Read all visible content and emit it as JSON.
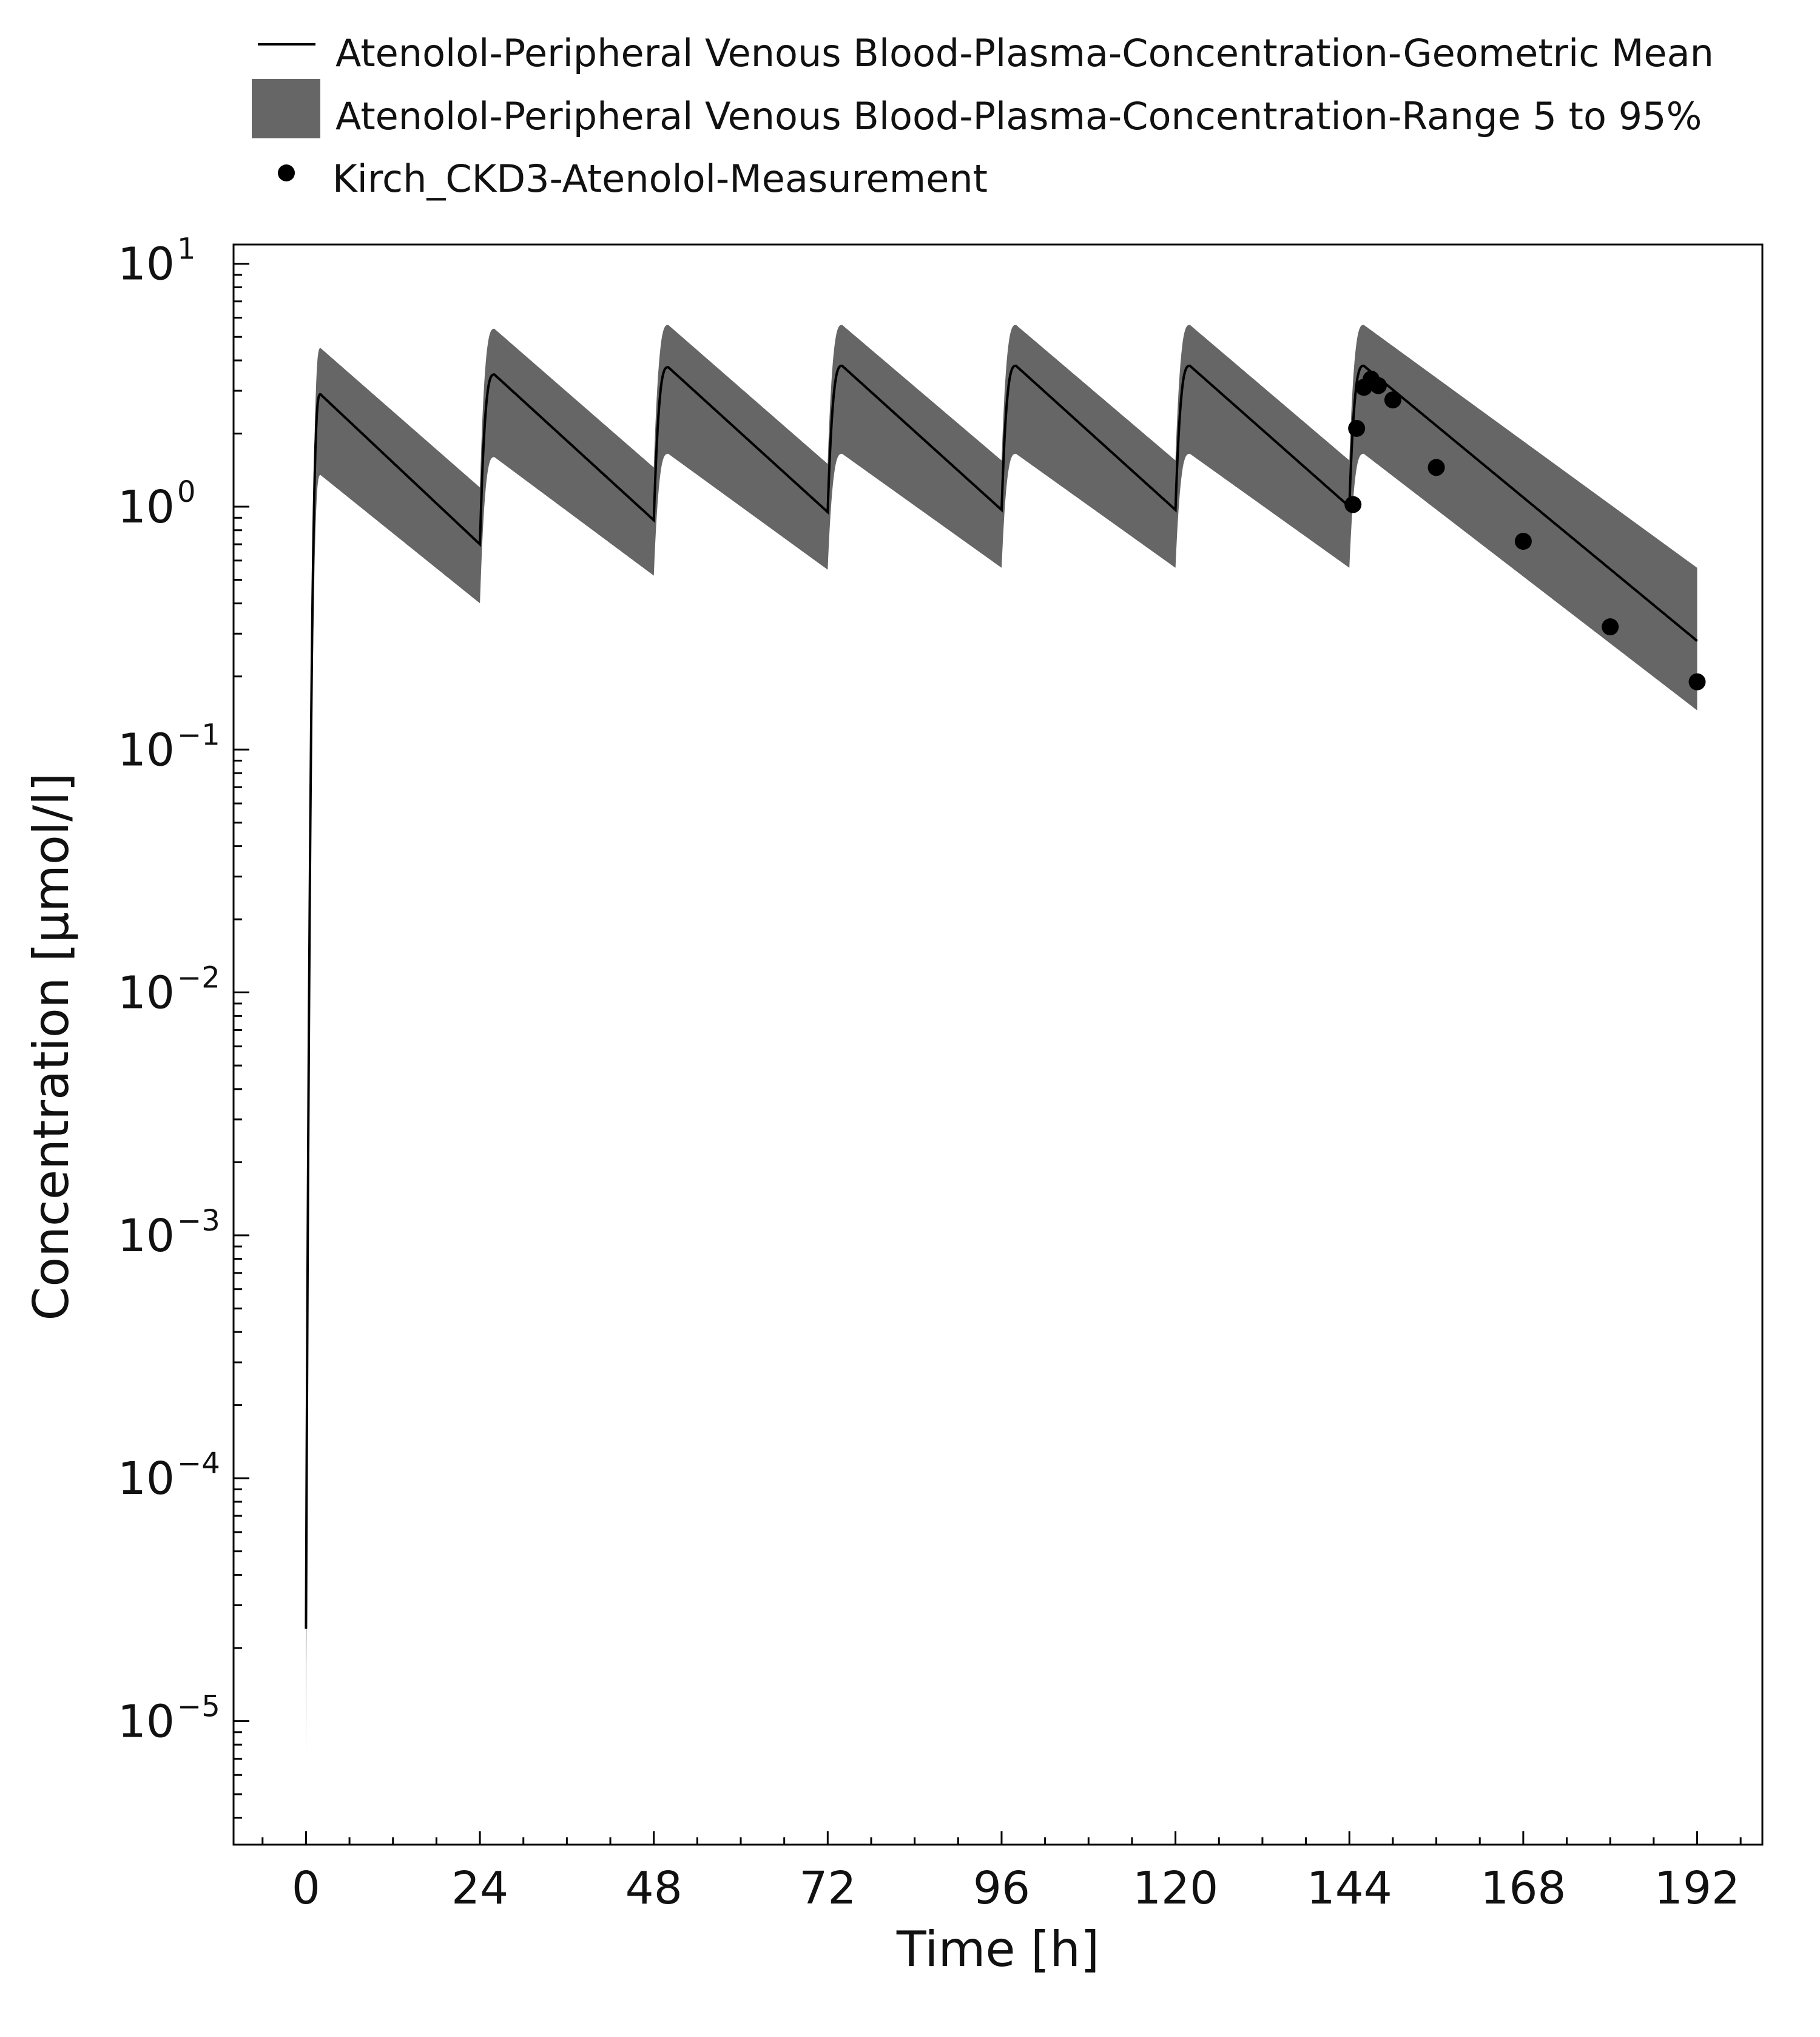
{
  "chart_data": {
    "type": "line",
    "xlabel": "Time [h]",
    "ylabel": "Concentration [µmol/l]",
    "xlim": [
      -10,
      201
    ],
    "ylim": [
      3.1e-06,
      12
    ],
    "y_scale": "log",
    "x_ticks": [
      0,
      24,
      48,
      72,
      96,
      120,
      144,
      168,
      192
    ],
    "x_tick_labels": [
      "0",
      "24",
      "48",
      "72",
      "96",
      "120",
      "144",
      "168",
      "192"
    ],
    "y_ticks": [
      {
        "value": 1e-05,
        "base": "10",
        "exp": "−5"
      },
      {
        "value": 0.0001,
        "base": "10",
        "exp": "−4"
      },
      {
        "value": 0.001,
        "base": "10",
        "exp": "−3"
      },
      {
        "value": 0.01,
        "base": "10",
        "exp": "−2"
      },
      {
        "value": 0.1,
        "base": "10",
        "exp": "−1"
      },
      {
        "value": 1,
        "base": "10",
        "exp": "0"
      },
      {
        "value": 10,
        "base": "10",
        "exp": "1"
      }
    ],
    "grid": false,
    "legend_position": "top",
    "legend": [
      {
        "kind": "line",
        "label": "Atenolol-Peripheral Venous Blood-Plasma-Concentration-Geometric Mean"
      },
      {
        "kind": "band",
        "label": "Atenolol-Peripheral Venous Blood-Plasma-Concentration-Range 5 to 95%"
      },
      {
        "kind": "point",
        "label": "Kirch_CKD3-Atenolol-Measurement"
      }
    ],
    "series": [
      {
        "name": "Atenolol-Peripheral Venous Blood-Plasma-Concentration-Geometric Mean",
        "kind": "line",
        "dosing_interval": 24,
        "doses": 7,
        "t_max": 192,
        "start_value": 2.4e-05,
        "peak_time_after_dose": 2,
        "peaks": [
          2.9,
          3.5,
          3.75,
          3.8,
          3.8,
          3.8,
          3.8
        ],
        "troughs": [
          0.7,
          0.88,
          0.95,
          0.97,
          0.97,
          1.0,
          0.28
        ],
        "color": "#000000"
      },
      {
        "name": "Atenolol-Peripheral Venous Blood-Plasma-Concentration-Range 5 to 95%",
        "kind": "band",
        "upper_peaks": [
          4.5,
          5.4,
          5.6,
          5.6,
          5.6,
          5.6,
          5.6
        ],
        "upper_troughs": [
          1.2,
          1.45,
          1.5,
          1.55,
          1.55,
          1.55,
          0.56
        ],
        "lower_peaks": [
          1.35,
          1.6,
          1.65,
          1.65,
          1.65,
          1.65,
          1.65
        ],
        "lower_troughs": [
          0.4,
          0.52,
          0.55,
          0.56,
          0.56,
          0.56,
          0.145
        ],
        "color": "#666666"
      },
      {
        "name": "Kirch_CKD3-Atenolol-Measurement",
        "kind": "scatter",
        "x": [
          144.5,
          145,
          146,
          147,
          148,
          150,
          156,
          168,
          180,
          192
        ],
        "y": [
          1.02,
          2.1,
          3.1,
          3.35,
          3.15,
          2.75,
          1.45,
          0.72,
          0.32,
          0.19
        ],
        "color": "#000000"
      }
    ]
  }
}
